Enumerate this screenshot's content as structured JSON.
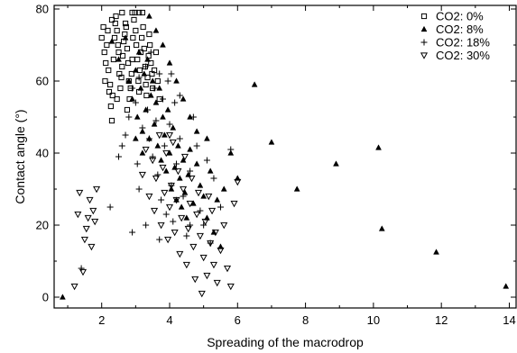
{
  "chart_data": {
    "type": "scatter",
    "title": "",
    "xlabel": "Spreading of the macrodrop",
    "ylabel": "Contact angle (°)",
    "xlim": [
      0.6,
      14.2
    ],
    "ylim": [
      -3,
      81
    ],
    "xticks": [
      2,
      4,
      6,
      8,
      10,
      12,
      14
    ],
    "yticks": [
      0,
      20,
      40,
      60,
      80
    ],
    "grid": false,
    "legend_position": "top-right",
    "series": [
      {
        "name": "CO2: 0%",
        "marker": "square",
        "points": [
          [
            2.0,
            72
          ],
          [
            2.05,
            75
          ],
          [
            2.08,
            68
          ],
          [
            2.1,
            60
          ],
          [
            2.12,
            65
          ],
          [
            2.15,
            70
          ],
          [
            2.18,
            74
          ],
          [
            2.2,
            63
          ],
          [
            2.22,
            57
          ],
          [
            2.25,
            59
          ],
          [
            2.27,
            53
          ],
          [
            2.3,
            49
          ],
          [
            2.32,
            56
          ],
          [
            2.35,
            66
          ],
          [
            2.38,
            72
          ],
          [
            2.4,
            76
          ],
          [
            2.42,
            78
          ],
          [
            2.45,
            74
          ],
          [
            2.48,
            70
          ],
          [
            2.5,
            68
          ],
          [
            2.52,
            62
          ],
          [
            2.55,
            58
          ],
          [
            2.58,
            61
          ],
          [
            2.6,
            64
          ],
          [
            2.62,
            67
          ],
          [
            2.65,
            71
          ],
          [
            2.68,
            73
          ],
          [
            2.7,
            76
          ],
          [
            2.72,
            75
          ],
          [
            2.75,
            69
          ],
          [
            2.78,
            65
          ],
          [
            2.8,
            60
          ],
          [
            2.82,
            55
          ],
          [
            2.85,
            58
          ],
          [
            2.88,
            62
          ],
          [
            2.9,
            66
          ],
          [
            2.92,
            72
          ],
          [
            2.95,
            77
          ],
          [
            2.98,
            79
          ],
          [
            3.0,
            74
          ],
          [
            3.02,
            70
          ],
          [
            3.05,
            66
          ],
          [
            3.08,
            60
          ],
          [
            3.1,
            57
          ],
          [
            3.12,
            63
          ],
          [
            3.15,
            68
          ],
          [
            3.18,
            72
          ],
          [
            3.2,
            79
          ],
          [
            3.22,
            75
          ],
          [
            3.25,
            69
          ],
          [
            3.28,
            64
          ],
          [
            3.3,
            59
          ],
          [
            3.32,
            56
          ],
          [
            3.35,
            61
          ],
          [
            3.38,
            67
          ],
          [
            3.4,
            73
          ],
          [
            3.42,
            70
          ],
          [
            3.45,
            65
          ],
          [
            3.48,
            62
          ],
          [
            3.5,
            58
          ],
          [
            3.55,
            63
          ],
          [
            3.6,
            68
          ],
          [
            3.65,
            60
          ],
          [
            3.7,
            55
          ],
          [
            2.3,
            77
          ],
          [
            2.6,
            79
          ],
          [
            2.9,
            79
          ],
          [
            3.1,
            79
          ],
          [
            2.45,
            55
          ],
          [
            2.75,
            52
          ]
        ]
      },
      {
        "name": "CO2: 8%",
        "marker": "triangle",
        "points": [
          [
            0.85,
            0
          ],
          [
            2.3,
            71
          ],
          [
            2.5,
            66
          ],
          [
            2.7,
            72
          ],
          [
            2.8,
            60
          ],
          [
            2.9,
            55
          ],
          [
            3.0,
            63
          ],
          [
            3.05,
            50
          ],
          [
            3.1,
            68
          ],
          [
            3.15,
            58
          ],
          [
            3.2,
            46
          ],
          [
            3.25,
            62
          ],
          [
            3.3,
            52
          ],
          [
            3.35,
            66
          ],
          [
            3.4,
            44
          ],
          [
            3.45,
            56
          ],
          [
            3.5,
            60
          ],
          [
            3.55,
            48
          ],
          [
            3.6,
            54
          ],
          [
            3.65,
            42
          ],
          [
            3.7,
            58
          ],
          [
            3.75,
            38
          ],
          [
            3.8,
            50
          ],
          [
            3.85,
            45
          ],
          [
            3.9,
            35
          ],
          [
            3.95,
            52
          ],
          [
            4.0,
            40
          ],
          [
            4.05,
            30
          ],
          [
            4.1,
            47
          ],
          [
            4.15,
            36
          ],
          [
            4.2,
            27
          ],
          [
            4.25,
            42
          ],
          [
            4.3,
            33
          ],
          [
            4.35,
            25
          ],
          [
            4.4,
            38
          ],
          [
            4.45,
            29
          ],
          [
            4.5,
            22
          ],
          [
            4.55,
            34
          ],
          [
            4.6,
            41
          ],
          [
            4.7,
            26
          ],
          [
            4.8,
            37
          ],
          [
            4.9,
            31
          ],
          [
            5.0,
            28
          ],
          [
            5.1,
            22
          ],
          [
            5.2,
            35
          ],
          [
            5.3,
            18
          ],
          [
            5.4,
            27
          ],
          [
            5.5,
            14
          ],
          [
            5.6,
            30
          ],
          [
            5.8,
            40
          ],
          [
            6.0,
            33
          ],
          [
            3.4,
            78
          ],
          [
            3.6,
            74
          ],
          [
            3.8,
            70
          ],
          [
            4.0,
            65
          ],
          [
            4.2,
            60
          ],
          [
            4.4,
            55
          ],
          [
            4.6,
            50
          ],
          [
            4.8,
            46
          ],
          [
            5.1,
            44
          ],
          [
            6.5,
            59
          ],
          [
            7.0,
            43
          ],
          [
            7.75,
            30
          ],
          [
            8.9,
            37
          ],
          [
            10.15,
            41.5
          ],
          [
            10.25,
            19
          ],
          [
            11.85,
            12.5
          ],
          [
            13.9,
            3
          ],
          [
            3.2,
            40
          ],
          [
            3.0,
            44
          ]
        ]
      },
      {
        "name": "CO2: 18%",
        "marker": "plus",
        "points": [
          [
            1.4,
            8
          ],
          [
            2.25,
            25
          ],
          [
            2.5,
            39
          ],
          [
            2.6,
            42
          ],
          [
            2.8,
            50
          ],
          [
            2.9,
            58
          ],
          [
            3.0,
            54
          ],
          [
            3.05,
            37
          ],
          [
            3.1,
            61
          ],
          [
            3.2,
            47
          ],
          [
            3.3,
            64
          ],
          [
            3.35,
            52
          ],
          [
            3.4,
            44
          ],
          [
            3.45,
            68
          ],
          [
            3.5,
            39
          ],
          [
            3.55,
            58
          ],
          [
            3.6,
            49
          ],
          [
            3.65,
            34
          ],
          [
            3.7,
            62
          ],
          [
            3.75,
            27
          ],
          [
            3.8,
            55
          ],
          [
            3.85,
            42
          ],
          [
            3.9,
            23
          ],
          [
            3.95,
            60
          ],
          [
            4.0,
            48
          ],
          [
            4.05,
            31
          ],
          [
            4.1,
            21
          ],
          [
            4.15,
            54
          ],
          [
            4.2,
            37
          ],
          [
            4.3,
            44
          ],
          [
            4.4,
            28
          ],
          [
            4.5,
            17
          ],
          [
            4.6,
            35
          ],
          [
            4.7,
            50
          ],
          [
            4.8,
            42
          ],
          [
            4.9,
            24
          ],
          [
            5.0,
            20
          ],
          [
            5.1,
            38
          ],
          [
            5.2,
            15
          ],
          [
            5.3,
            33
          ],
          [
            5.5,
            25
          ],
          [
            5.8,
            41
          ],
          [
            2.9,
            18
          ],
          [
            3.7,
            16
          ],
          [
            4.05,
            62
          ],
          [
            3.1,
            30
          ],
          [
            3.3,
            20
          ],
          [
            2.7,
            45
          ],
          [
            4.3,
            56
          ],
          [
            4.6,
            20
          ]
        ]
      },
      {
        "name": "CO2: 30%",
        "marker": "inverted-triangle",
        "points": [
          [
            1.2,
            3
          ],
          [
            1.3,
            23
          ],
          [
            1.35,
            29
          ],
          [
            1.45,
            7
          ],
          [
            1.5,
            16
          ],
          [
            1.55,
            19
          ],
          [
            1.6,
            22
          ],
          [
            1.65,
            27
          ],
          [
            1.7,
            14
          ],
          [
            1.75,
            24
          ],
          [
            1.8,
            21
          ],
          [
            1.85,
            30
          ],
          [
            3.2,
            34
          ],
          [
            3.3,
            41
          ],
          [
            3.4,
            28
          ],
          [
            3.5,
            38
          ],
          [
            3.55,
            24
          ],
          [
            3.6,
            33
          ],
          [
            3.7,
            45
          ],
          [
            3.75,
            20
          ],
          [
            3.8,
            36
          ],
          [
            3.85,
            29
          ],
          [
            3.9,
            40
          ],
          [
            3.95,
            16
          ],
          [
            4.0,
            25
          ],
          [
            4.05,
            31
          ],
          [
            4.1,
            43
          ],
          [
            4.15,
            18
          ],
          [
            4.2,
            27
          ],
          [
            4.25,
            35
          ],
          [
            4.3,
            12
          ],
          [
            4.35,
            22
          ],
          [
            4.4,
            30
          ],
          [
            4.45,
            39
          ],
          [
            4.5,
            9
          ],
          [
            4.55,
            19
          ],
          [
            4.6,
            26
          ],
          [
            4.65,
            33
          ],
          [
            4.7,
            14
          ],
          [
            4.75,
            5
          ],
          [
            4.8,
            23
          ],
          [
            4.85,
            29
          ],
          [
            4.9,
            17
          ],
          [
            4.95,
            1
          ],
          [
            5.0,
            11
          ],
          [
            5.05,
            21
          ],
          [
            5.1,
            6
          ],
          [
            5.15,
            28
          ],
          [
            5.2,
            15
          ],
          [
            5.25,
            24
          ],
          [
            5.3,
            9
          ],
          [
            5.35,
            18
          ],
          [
            5.4,
            4
          ],
          [
            5.5,
            13
          ],
          [
            5.6,
            20
          ],
          [
            5.7,
            8
          ],
          [
            5.8,
            3
          ],
          [
            5.9,
            26
          ],
          [
            6.0,
            32
          ],
          [
            4.0,
            45
          ]
        ]
      }
    ]
  }
}
